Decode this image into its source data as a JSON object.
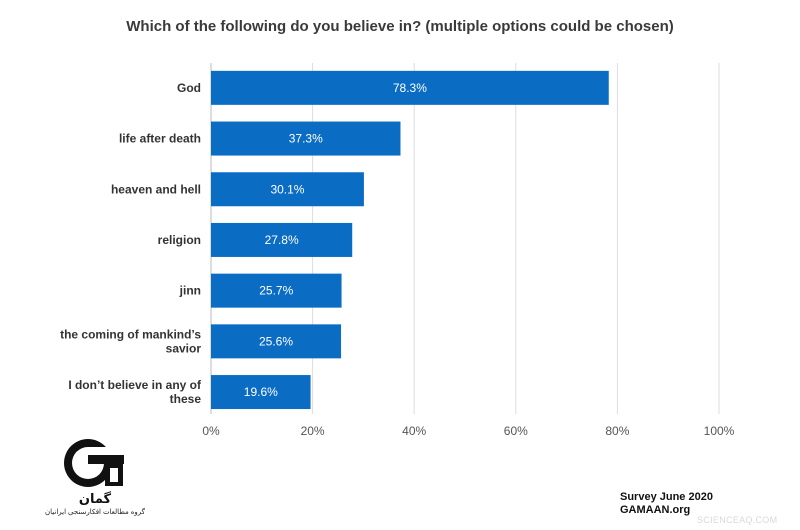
{
  "chart_data": {
    "type": "bar",
    "orientation": "horizontal",
    "title": "Which of the following do you believe in? (multiple options could be chosen)",
    "categories": [
      [
        "God"
      ],
      [
        "life after death"
      ],
      [
        "heaven and hell"
      ],
      [
        "religion"
      ],
      [
        "jinn"
      ],
      [
        "the coming of mankind’s",
        "savior"
      ],
      [
        "I don’t believe in any of",
        "these"
      ]
    ],
    "values": [
      78.3,
      37.3,
      30.1,
      27.8,
      25.7,
      25.6,
      19.6
    ],
    "value_labels": [
      "78.3%",
      "37.3%",
      "30.1%",
      "27.8%",
      "25.7%",
      "25.6%",
      "19.6%"
    ],
    "xlim": [
      0,
      100
    ],
    "xticks": [
      0,
      20,
      40,
      60,
      80,
      100
    ],
    "xtick_labels": [
      "0%",
      "20%",
      "40%",
      "60%",
      "80%",
      "100%"
    ],
    "grid": true,
    "bar_color": "#0b6cc4"
  },
  "logo": {
    "name": "gamaan-logo",
    "wordmark": "گمان",
    "caption": "گروه مطالعات افکارسنجی ایرانیان"
  },
  "footer": {
    "line1": "Survey June 2020",
    "line2": "GAMAAN.org"
  },
  "watermark": "SCIENCEAQ.COM"
}
